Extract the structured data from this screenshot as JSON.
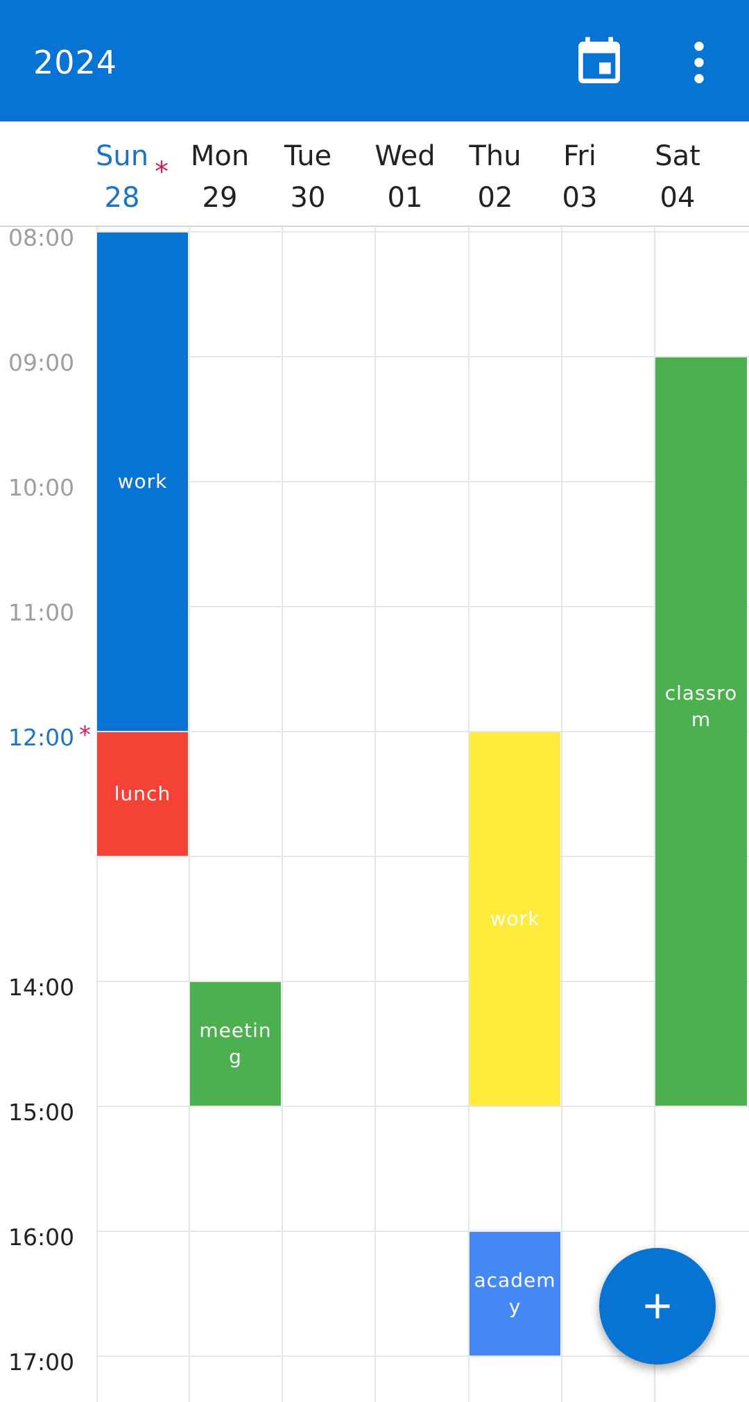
{
  "header": {
    "title": "2024",
    "calendar_icon": "calendar-today-icon",
    "menu_icon": "more-vert-icon",
    "color": "#0773d3"
  },
  "days": [
    {
      "name": "Sun",
      "num": "28",
      "today": true
    },
    {
      "name": "Mon",
      "num": "29"
    },
    {
      "name": "Tue",
      "num": "30"
    },
    {
      "name": "Wed",
      "num": "01"
    },
    {
      "name": "Thu",
      "num": "02"
    },
    {
      "name": "Fri",
      "num": "03"
    },
    {
      "name": "Sat",
      "num": "04"
    }
  ],
  "times": [
    "08:00",
    "09:00",
    "10:00",
    "11:00",
    "12:00",
    "14:00",
    "15:00",
    "16:00",
    "17:00"
  ],
  "now_marker": "*",
  "events": [
    {
      "label": "work",
      "day": "Sun",
      "start": "08:00",
      "end": "12:00",
      "color": "#0773d3"
    },
    {
      "label": "lunch",
      "day": "Sun",
      "start": "12:00",
      "end": "13:00",
      "color": "#f44336"
    },
    {
      "label": "meeting",
      "day": "Mon",
      "start": "14:00",
      "end": "15:00",
      "color": "#4caf50"
    },
    {
      "label": "work",
      "day": "Thu",
      "start": "12:00",
      "end": "15:00",
      "color": "#ffeb3b"
    },
    {
      "label": "academy",
      "day": "Thu",
      "start": "16:00",
      "end": "17:00",
      "color": "#4488f6"
    },
    {
      "label": "classrom",
      "day": "Sat",
      "start": "09:00",
      "end": "15:00",
      "color": "#4caf50"
    }
  ],
  "fab": {
    "icon": "plus-icon"
  }
}
